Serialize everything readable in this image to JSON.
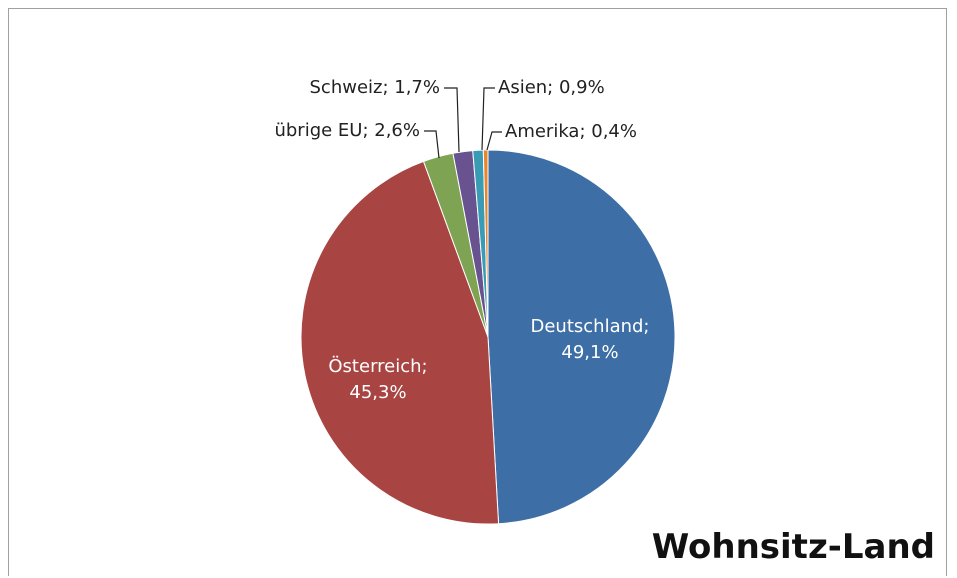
{
  "chart_data": {
    "type": "pie",
    "title": "Wohnsitz-Land",
    "categories": [
      "Deutschland",
      "Österreich",
      "übrige EU",
      "Schweiz",
      "Asien",
      "Amerika"
    ],
    "values": [
      49.1,
      45.3,
      2.6,
      1.7,
      0.9,
      0.4
    ],
    "value_labels": [
      "Deutschland; 49,1%",
      "Österreich; 45,3%",
      "übrige EU; 2,6%",
      "Schweiz; 1,7%",
      "Asien; 0,9%",
      "Amerika; 0,4%"
    ],
    "colors": [
      "#3d6fa6",
      "#a84442",
      "#7ea453",
      "#68528f",
      "#3a9bb5",
      "#e8862f"
    ]
  }
}
